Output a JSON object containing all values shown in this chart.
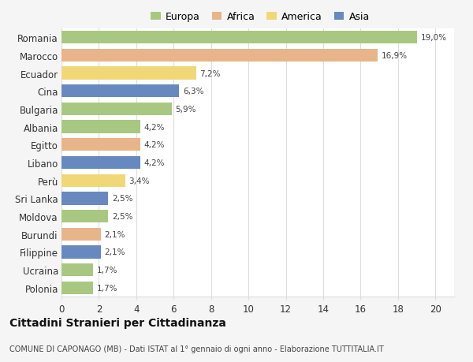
{
  "countries": [
    "Romania",
    "Marocco",
    "Ecuador",
    "Cina",
    "Bulgaria",
    "Albania",
    "Egitto",
    "Libano",
    "Perù",
    "Sri Lanka",
    "Moldova",
    "Burundi",
    "Filippine",
    "Ucraina",
    "Polonia"
  ],
  "values": [
    19.0,
    16.9,
    7.2,
    6.3,
    5.9,
    4.2,
    4.2,
    4.2,
    3.4,
    2.5,
    2.5,
    2.1,
    2.1,
    1.7,
    1.7
  ],
  "labels": [
    "19,0%",
    "16,9%",
    "7,2%",
    "6,3%",
    "5,9%",
    "4,2%",
    "4,2%",
    "4,2%",
    "3,4%",
    "2,5%",
    "2,5%",
    "2,1%",
    "2,1%",
    "1,7%",
    "1,7%"
  ],
  "continents": [
    "Europa",
    "Africa",
    "America",
    "Asia",
    "Europa",
    "Europa",
    "Africa",
    "Asia",
    "America",
    "Asia",
    "Europa",
    "Africa",
    "Asia",
    "Europa",
    "Europa"
  ],
  "colors": {
    "Europa": "#a8c882",
    "Africa": "#e8b48a",
    "America": "#f0d878",
    "Asia": "#6888c0"
  },
  "legend_order": [
    "Europa",
    "Africa",
    "America",
    "Asia"
  ],
  "title": "Cittadini Stranieri per Cittadinanza",
  "subtitle": "COMUNE DI CAPONAGO (MB) - Dati ISTAT al 1° gennaio di ogni anno - Elaborazione TUTTITALIA.IT",
  "xlabel_ticks": [
    0,
    2,
    4,
    6,
    8,
    10,
    12,
    14,
    16,
    18,
    20
  ],
  "xlim": [
    0,
    21
  ],
  "background_color": "#f5f5f5",
  "bar_background": "#ffffff",
  "grid_color": "#dddddd"
}
